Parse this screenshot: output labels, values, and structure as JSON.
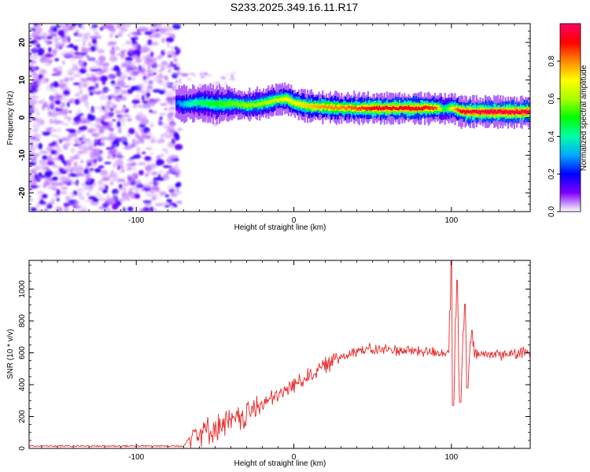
{
  "title": "S233.2025.349.16.11.R17",
  "chart_data": [
    {
      "type": "heatmap",
      "name": "spectrogram",
      "xlabel": "Height of straight line (km)",
      "ylabel": "Frequency (Hz)",
      "xlim": [
        -168,
        150
      ],
      "ylim": [
        -25,
        25
      ],
      "x_ticks": [
        -100,
        0,
        100
      ],
      "y_ticks": [
        -20,
        -10,
        0,
        10,
        20
      ],
      "noise_region": {
        "x_range": [
          -168,
          -72
        ],
        "y_range": [
          -25,
          25
        ]
      },
      "ridge": {
        "x": [
          -75,
          -70,
          -60,
          -50,
          -40,
          -30,
          -20,
          -10,
          -5,
          0,
          10,
          20,
          30,
          40,
          50,
          60,
          70,
          80,
          90,
          95,
          100,
          105,
          110,
          120,
          130,
          140,
          150
        ],
        "frequency_hz": [
          4,
          3.5,
          4,
          3.5,
          3.8,
          3.2,
          3.8,
          4.8,
          5,
          3.8,
          3,
          2.8,
          2.6,
          2.5,
          2.5,
          2.5,
          2.5,
          2.5,
          2.6,
          2.2,
          2.6,
          1.8,
          1.5,
          1.5,
          1.5,
          1.5,
          1.5
        ],
        "amplitude": [
          0.25,
          0.35,
          0.45,
          0.5,
          0.55,
          0.6,
          0.6,
          0.65,
          0.7,
          0.7,
          0.75,
          0.8,
          0.8,
          0.85,
          0.9,
          0.9,
          0.92,
          0.9,
          0.85,
          0.45,
          0.7,
          0.9,
          0.95,
          0.97,
          0.97,
          0.97,
          0.97
        ]
      },
      "colorbar": {
        "label": "Normalized spectral amplitude",
        "range": [
          0,
          1
        ],
        "ticks": [
          "0.0",
          "0.2",
          "0.4",
          "0.6",
          "0.8"
        ],
        "colormap": [
          "#ffffff",
          "#7f00ff",
          "#0000ff",
          "#00aaff",
          "#00ffaa",
          "#00ff00",
          "#aaff00",
          "#ffff00",
          "#ff8800",
          "#ff0000",
          "#ff0066"
        ]
      }
    },
    {
      "type": "line",
      "name": "snr",
      "xlabel": "Height of straight line (km)",
      "ylabel": "SNR (10 * v/v)",
      "xlim": [
        -168,
        150
      ],
      "ylim": [
        0,
        1180
      ],
      "x_ticks": [
        -100,
        0,
        100
      ],
      "y_ticks": [
        0,
        200,
        400,
        600,
        800,
        1000
      ],
      "color": "#e82a2a",
      "trend": {
        "x": [
          -168,
          -70,
          -64,
          -55,
          -45,
          -35,
          -20,
          -10,
          0,
          10,
          20,
          30,
          40,
          60,
          80,
          95,
          100,
          103,
          106,
          110,
          130,
          150
        ],
        "snr": [
          15,
          15,
          100,
          110,
          150,
          180,
          280,
          330,
          400,
          460,
          520,
          580,
          615,
          620,
          610,
          600,
          600,
          600,
          600,
          590,
          590,
          600
        ]
      },
      "peaks": [
        {
          "x": 100,
          "snr": 1175
        },
        {
          "x": 101,
          "snr": 270
        },
        {
          "x": 103.5,
          "snr": 1055
        },
        {
          "x": 105.5,
          "snr": 290
        },
        {
          "x": 108.5,
          "snr": 905
        },
        {
          "x": 110,
          "snr": 380
        },
        {
          "x": 113,
          "snr": 740
        }
      ]
    }
  ]
}
